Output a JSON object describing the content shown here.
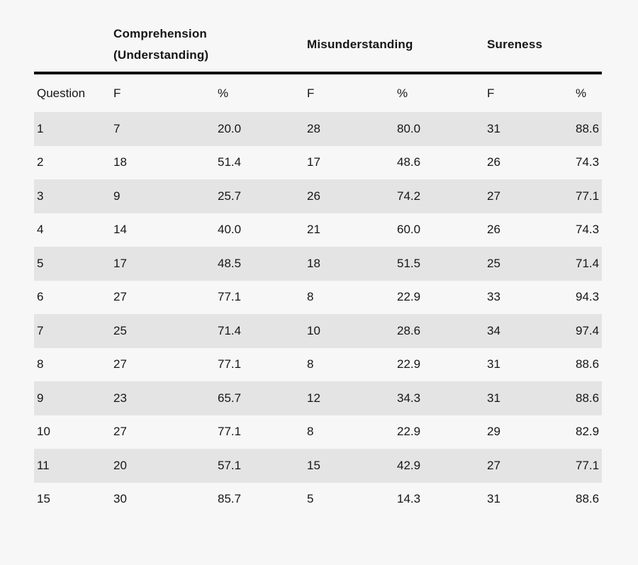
{
  "colors": {
    "background": "#f7f7f7",
    "row_shade": "#e4e4e4",
    "rule": "#0a0a0a",
    "text": "#161616"
  },
  "table": {
    "group_headers": [
      {
        "line1": "Comprehension",
        "line2": "(Understanding)"
      },
      {
        "line1": "Misunderstanding"
      },
      {
        "line1": "Sureness"
      }
    ],
    "columns": [
      "Question",
      "F",
      "%",
      "F",
      "%",
      "F",
      "%"
    ],
    "rows": [
      [
        "1",
        "7",
        "20.0",
        "28",
        "80.0",
        "31",
        "88.6"
      ],
      [
        "2",
        "18",
        "51.4",
        "17",
        "48.6",
        "26",
        "74.3"
      ],
      [
        "3",
        "9",
        "25.7",
        "26",
        "74.2",
        "27",
        "77.1"
      ],
      [
        "4",
        "14",
        "40.0",
        "21",
        "60.0",
        "26",
        "74.3"
      ],
      [
        "5",
        "17",
        "48.5",
        "18",
        "51.5",
        "25",
        "71.4"
      ],
      [
        "6",
        "27",
        "77.1",
        "8",
        "22.9",
        "33",
        "94.3"
      ],
      [
        "7",
        "25",
        "71.4",
        "10",
        "28.6",
        "34",
        "97.4"
      ],
      [
        "8",
        "27",
        "77.1",
        "8",
        "22.9",
        "31",
        "88.6"
      ],
      [
        "9",
        "23",
        "65.7",
        "12",
        "34.3",
        "31",
        "88.6"
      ],
      [
        "10",
        "27",
        "77.1",
        "8",
        "22.9",
        "29",
        "82.9"
      ],
      [
        "11",
        "20",
        "57.1",
        "15",
        "42.9",
        "27",
        "77.1"
      ],
      [
        "15",
        "30",
        "85.7",
        "5",
        "14.3",
        "31",
        "88.6"
      ]
    ]
  },
  "chart_data": {
    "type": "table",
    "title": "",
    "column_groups": [
      "Comprehension (Understanding)",
      "Misunderstanding",
      "Sureness"
    ],
    "columns": [
      "Question",
      "F",
      "%",
      "F",
      "%",
      "F",
      "%"
    ],
    "rows": [
      [
        "1",
        7,
        20.0,
        28,
        80.0,
        31,
        88.6
      ],
      [
        "2",
        18,
        51.4,
        17,
        48.6,
        26,
        74.3
      ],
      [
        "3",
        9,
        25.7,
        26,
        74.2,
        27,
        77.1
      ],
      [
        "4",
        14,
        40.0,
        21,
        60.0,
        26,
        74.3
      ],
      [
        "5",
        17,
        48.5,
        18,
        51.5,
        25,
        71.4
      ],
      [
        "6",
        27,
        77.1,
        8,
        22.9,
        33,
        94.3
      ],
      [
        "7",
        25,
        71.4,
        10,
        28.6,
        34,
        97.4
      ],
      [
        "8",
        27,
        77.1,
        8,
        22.9,
        31,
        88.6
      ],
      [
        "9",
        23,
        65.7,
        12,
        34.3,
        31,
        88.6
      ],
      [
        "10",
        27,
        77.1,
        8,
        22.9,
        29,
        82.9
      ],
      [
        "11",
        20,
        57.1,
        15,
        42.9,
        27,
        77.1
      ],
      [
        "15",
        30,
        85.7,
        5,
        14.3,
        31,
        88.6
      ]
    ]
  }
}
